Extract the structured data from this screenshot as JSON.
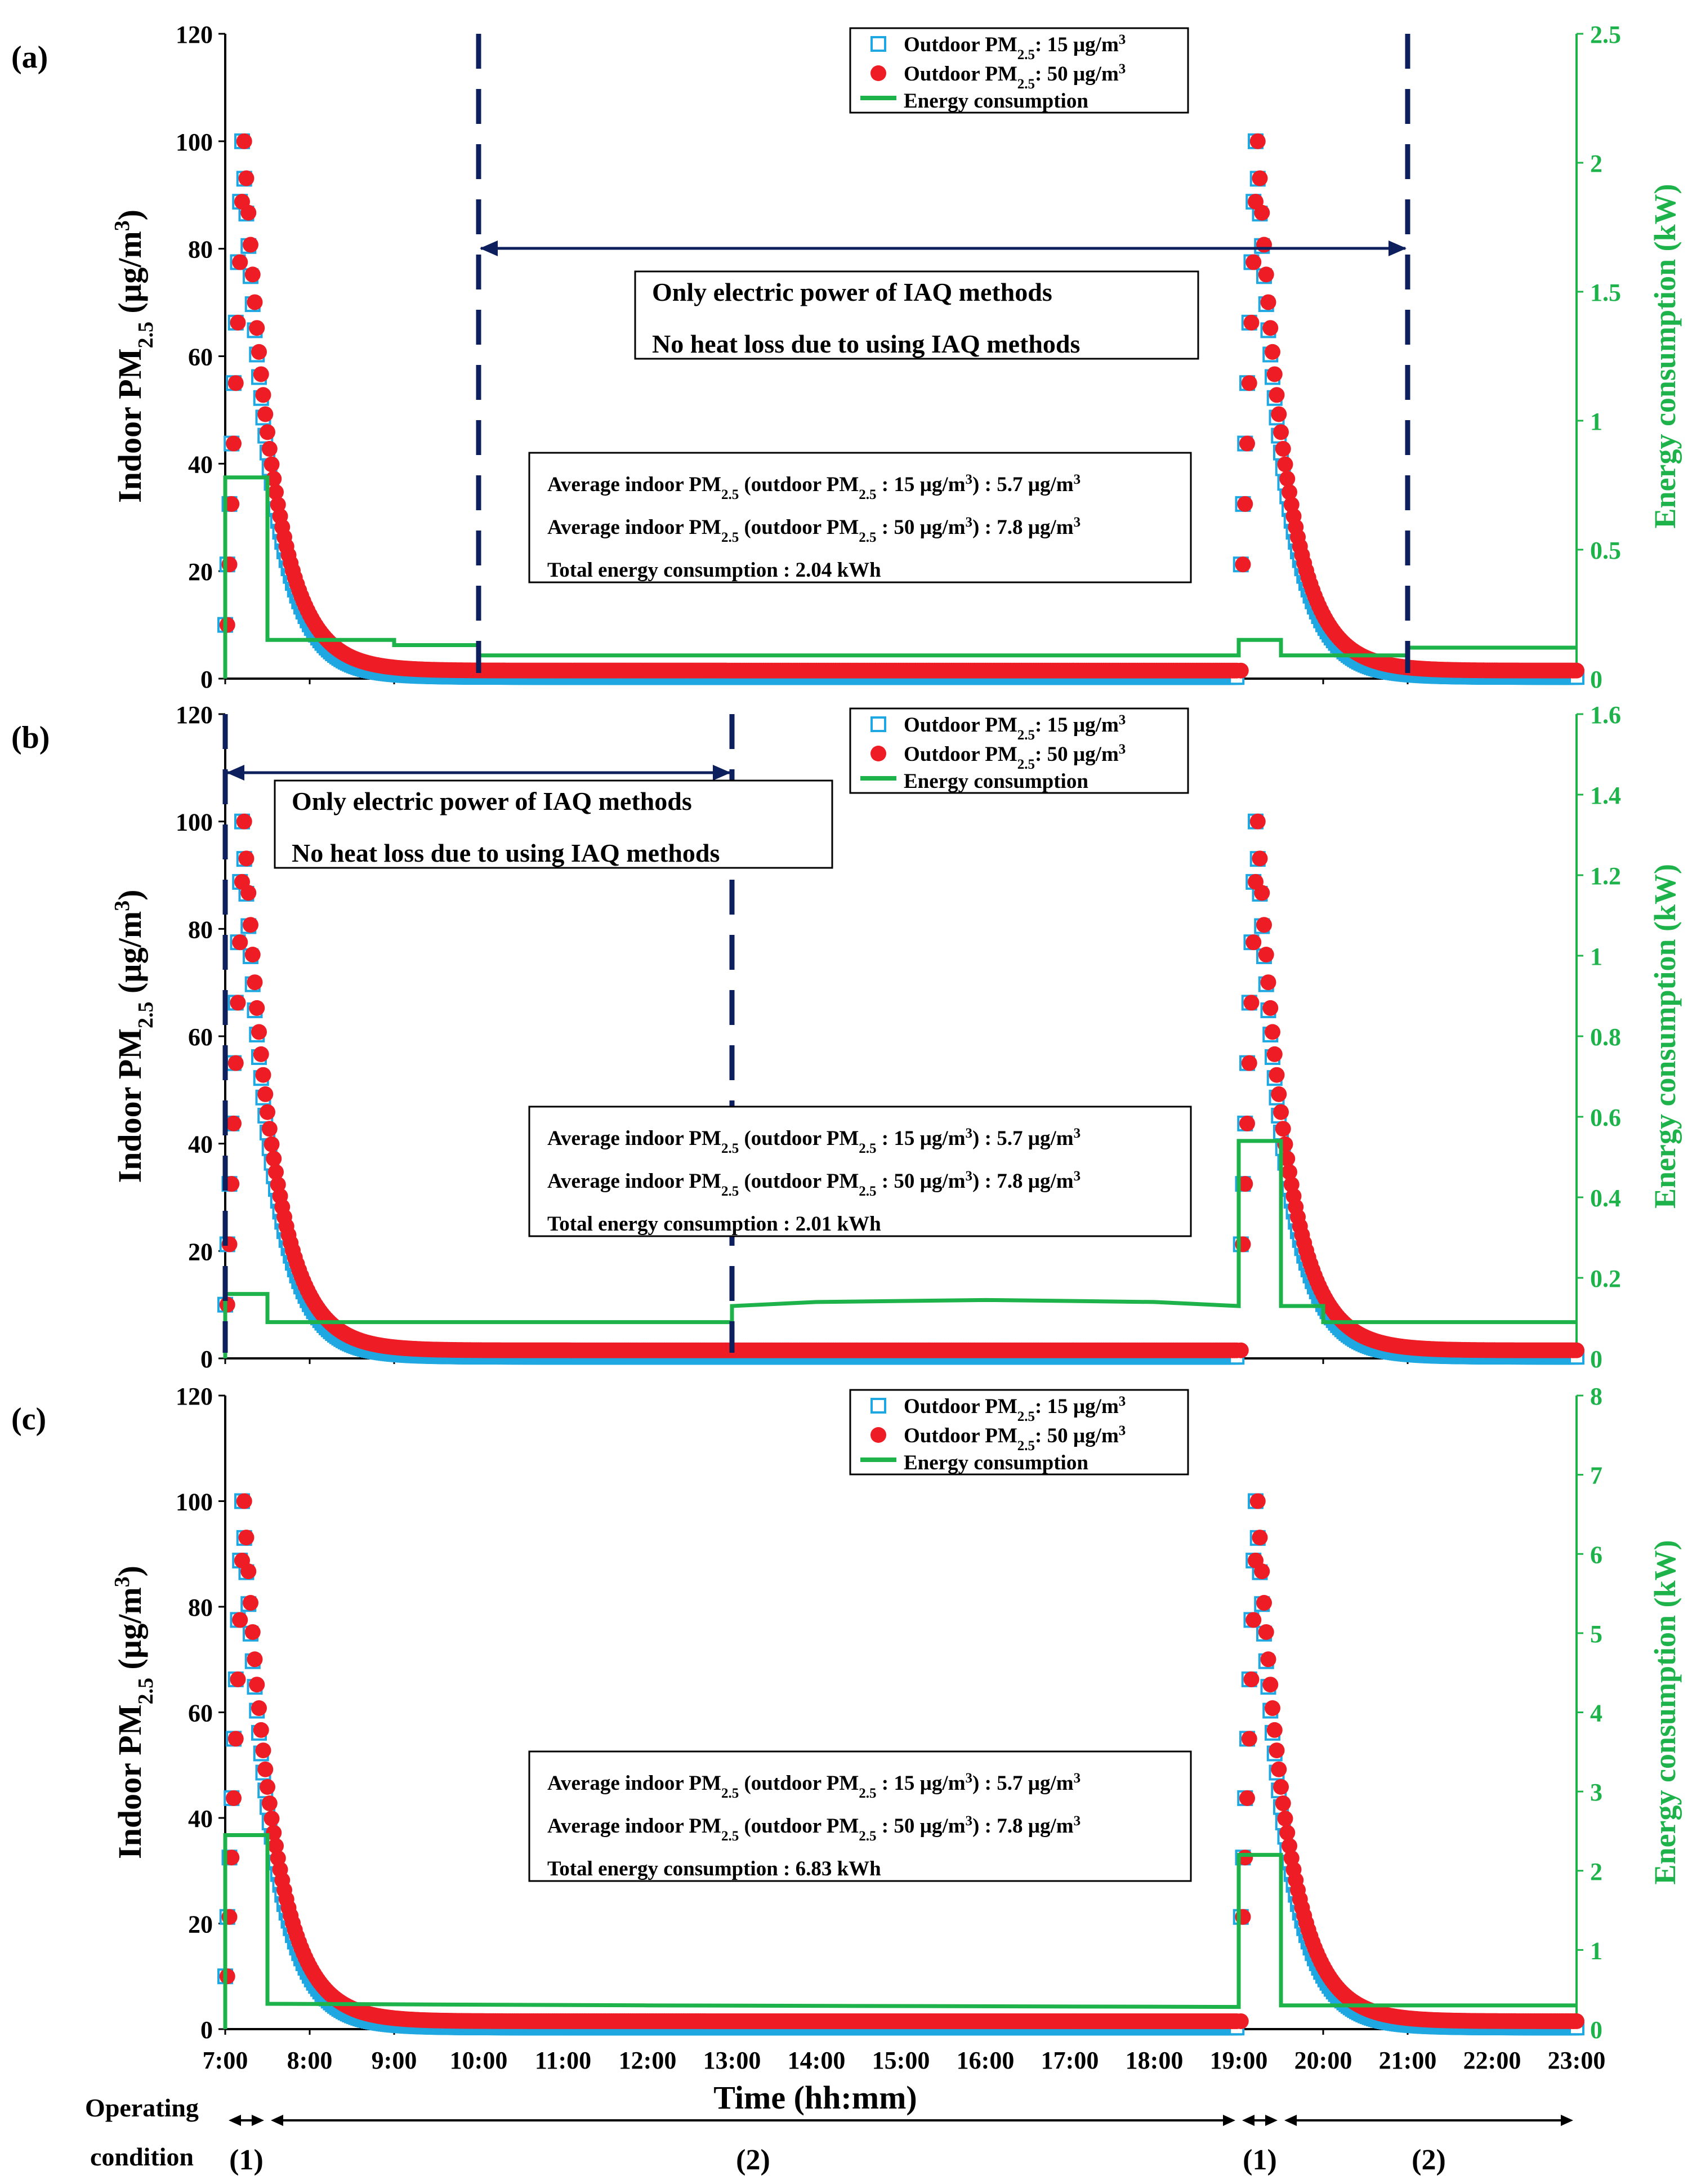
{
  "chart_data": [
    {
      "type": "line",
      "panel_label": "(a)",
      "xlim_hours": [
        7,
        23
      ],
      "left_axis": {
        "label_main": "Indoor PM",
        "label_sub": "2.5",
        "label_unit": " (µg/m",
        "label_sup": "3",
        "label_end": ")",
        "ylim": [
          0,
          120
        ],
        "ticks": [
          0,
          20,
          40,
          60,
          80,
          100,
          120
        ]
      },
      "right_axis": {
        "label": "Energy consumption (kW)",
        "ylim": [
          0,
          2.5
        ],
        "ticks": [
          0,
          0.5,
          1,
          1.5,
          2,
          2.5
        ],
        "tick_labels": [
          "0",
          "0.5",
          "1",
          "1.5",
          "2",
          "2.5"
        ]
      },
      "legend": {
        "position": "top-right",
        "entries": [
          {
            "main": "Outdoor PM",
            "sub": "2.5",
            "rest": ": 15 µg/m",
            "sup": "3"
          },
          {
            "main": "Outdoor PM",
            "sub": "2.5",
            "rest": ": 50 µg/m",
            "sup": "3"
          },
          {
            "main": "Energy consumption",
            "sub": "",
            "rest": "",
            "sup": ""
          }
        ]
      },
      "vlines_hours": [
        10,
        21
      ],
      "arrow_span_hours": [
        10,
        21
      ],
      "note_lines": [
        "Only electric power of IAQ methods",
        "No heat loss due to using IAQ methods"
      ],
      "stats": [
        {
          "a": "Average indoor PM",
          "b": "2.5",
          "c": " (outdoor PM",
          "d": "2.5",
          "e": " : 15 µg/m",
          "f": "3",
          "g": ") : 5.7 µg/m",
          "h": "3"
        },
        {
          "a": "Average indoor PM",
          "b": "2.5",
          "c": " (outdoor PM",
          "d": "2.5",
          "e": " : 50 µg/m",
          "f": "3",
          "g": ") : 7.8 µg/m",
          "h": "3"
        }
      ],
      "total_energy": "Total energy consumption : 2.04 kWh",
      "energy_steps": [
        [
          7.0,
          0.0
        ],
        [
          7.0,
          0.78
        ],
        [
          7.5,
          0.78
        ],
        [
          7.5,
          0.15
        ],
        [
          9.0,
          0.15
        ],
        [
          9.0,
          0.13
        ],
        [
          10.0,
          0.13
        ],
        [
          10.0,
          0.09
        ],
        [
          19.0,
          0.09
        ],
        [
          19.0,
          0.15
        ],
        [
          19.5,
          0.15
        ],
        [
          19.5,
          0.09
        ],
        [
          21.0,
          0.09
        ],
        [
          21.0,
          0.12
        ],
        [
          23.0,
          0.12
        ]
      ]
    },
    {
      "type": "line",
      "panel_label": "(b)",
      "xlim_hours": [
        7,
        23
      ],
      "left_axis": {
        "label_main": "Indoor PM",
        "label_sub": "2.5",
        "label_unit": " (µg/m",
        "label_sup": "3",
        "label_end": ")",
        "ylim": [
          0,
          120
        ],
        "ticks": [
          0,
          20,
          40,
          60,
          80,
          100,
          120
        ]
      },
      "right_axis": {
        "label": "Energy consumption (kW)",
        "ylim": [
          0,
          1.6
        ],
        "ticks": [
          0,
          0.2,
          0.4,
          0.6,
          0.8,
          1,
          1.2,
          1.4,
          1.6
        ],
        "tick_labels": [
          "0",
          "0.2",
          "0.4",
          "0.6",
          "0.8",
          "1",
          "1.2",
          "1.4",
          "1.6"
        ]
      },
      "legend": {
        "position": "top-right",
        "entries": [
          {
            "main": "Outdoor PM",
            "sub": "2.5",
            "rest": ": 15 µg/m",
            "sup": "3"
          },
          {
            "main": "Outdoor PM",
            "sub": "2.5",
            "rest": ": 50 µg/m",
            "sup": "3"
          },
          {
            "main": "Energy consumption",
            "sub": "",
            "rest": "",
            "sup": ""
          }
        ]
      },
      "vlines_hours": [
        7,
        13
      ],
      "arrow_span_hours": [
        7,
        13
      ],
      "note_lines": [
        "Only electric power of IAQ methods",
        "No heat loss due to using IAQ methods"
      ],
      "stats": [
        {
          "a": "Average indoor PM",
          "b": "2.5",
          "c": " (outdoor PM",
          "d": "2.5",
          "e": " : 15 µg/m",
          "f": "3",
          "g": ") : 5.7 µg/m",
          "h": "3"
        },
        {
          "a": "Average indoor PM",
          "b": "2.5",
          "c": " (outdoor PM",
          "d": "2.5",
          "e": " : 50 µg/m",
          "f": "3",
          "g": ") : 7.8 µg/m",
          "h": "3"
        }
      ],
      "total_energy": "Total energy consumption : 2.01 kWh",
      "energy_steps": [
        [
          7.0,
          0.0
        ],
        [
          7.0,
          0.16
        ],
        [
          7.5,
          0.16
        ],
        [
          7.5,
          0.09
        ],
        [
          13.0,
          0.09
        ],
        [
          13.0,
          0.13
        ],
        [
          14.0,
          0.14
        ],
        [
          16.0,
          0.145
        ],
        [
          18.0,
          0.14
        ],
        [
          19.0,
          0.13
        ],
        [
          19.0,
          0.54
        ],
        [
          19.5,
          0.54
        ],
        [
          19.5,
          0.13
        ],
        [
          20.0,
          0.13
        ],
        [
          20.0,
          0.09
        ],
        [
          23.0,
          0.09
        ]
      ]
    },
    {
      "type": "line",
      "panel_label": "(c)",
      "xlim_hours": [
        7,
        23
      ],
      "left_axis": {
        "label_main": "Indoor PM",
        "label_sub": "2.5",
        "label_unit": " (µg/m",
        "label_sup": "3",
        "label_end": ")",
        "ylim": [
          0,
          120
        ],
        "ticks": [
          0,
          20,
          40,
          60,
          80,
          100,
          120
        ]
      },
      "right_axis": {
        "label": "Energy consumption (kW)",
        "ylim": [
          0,
          8
        ],
        "ticks": [
          0,
          1,
          2,
          3,
          4,
          5,
          6,
          7,
          8
        ],
        "tick_labels": [
          "0",
          "1",
          "2",
          "3",
          "4",
          "5",
          "6",
          "7",
          "8"
        ]
      },
      "legend": {
        "position": "top-right",
        "entries": [
          {
            "main": "Outdoor PM",
            "sub": "2.5",
            "rest": ": 15 µg/m",
            "sup": "3"
          },
          {
            "main": "Outdoor PM",
            "sub": "2.5",
            "rest": ": 50 µg/m",
            "sup": "3"
          },
          {
            "main": "Energy consumption",
            "sub": "",
            "rest": "",
            "sup": ""
          }
        ]
      },
      "vlines_hours": [],
      "arrow_span_hours": [],
      "note_lines": [],
      "stats": [
        {
          "a": "Average indoor PM",
          "b": "2.5",
          "c": " (outdoor PM",
          "d": "2.5",
          "e": " : 15 µg/m",
          "f": "3",
          "g": ") : 5.7 µg/m",
          "h": "3"
        },
        {
          "a": "Average indoor PM",
          "b": "2.5",
          "c": " (outdoor PM",
          "d": "2.5",
          "e": " : 50 µg/m",
          "f": "3",
          "g": ") : 7.8 µg/m",
          "h": "3"
        }
      ],
      "total_energy": "Total energy consumption : 6.83 kWh",
      "energy_steps": [
        [
          7.0,
          0.0
        ],
        [
          7.0,
          2.45
        ],
        [
          7.5,
          2.45
        ],
        [
          7.5,
          0.32
        ],
        [
          12.0,
          0.3
        ],
        [
          19.0,
          0.28
        ],
        [
          19.0,
          2.2
        ],
        [
          19.5,
          2.2
        ],
        [
          19.5,
          0.3
        ],
        [
          23.0,
          0.3
        ]
      ]
    }
  ],
  "x_axis": {
    "label": "Time (hh:mm)",
    "tick_hours": [
      7,
      8,
      9,
      10,
      11,
      12,
      13,
      14,
      15,
      16,
      17,
      18,
      19,
      20,
      21,
      22,
      23
    ],
    "tick_labels": [
      "7:00",
      "8:00",
      "9:00",
      "10:00",
      "11:00",
      "12:00",
      "13:00",
      "14:00",
      "15:00",
      "16:00",
      "17:00",
      "18:00",
      "19:00",
      "20:00",
      "21:00",
      "22:00",
      "23:00"
    ]
  },
  "pm_model": {
    "occupancy_events_hours": [
      7.0,
      19.0
    ],
    "peak_value": 100,
    "baseline_15": 0.3,
    "baseline_50": 1.5
  },
  "operating_condition": {
    "label_line1": "Operating",
    "label_line2": "condition",
    "segments": [
      {
        "label": "(1)",
        "start_hour": 7.0,
        "end_hour": 7.5
      },
      {
        "label": "(2)",
        "start_hour": 7.5,
        "end_hour": 19.0
      },
      {
        "label": "(1)",
        "start_hour": 19.0,
        "end_hour": 19.5
      },
      {
        "label": "(2)",
        "start_hour": 19.5,
        "end_hour": 23.0
      }
    ]
  },
  "colors": {
    "series_15": "#1ea7e1",
    "series_50": "#ee1c24",
    "energy": "#1db34a",
    "dashed_lines": "#0d1f5c",
    "axis": "#000000"
  }
}
